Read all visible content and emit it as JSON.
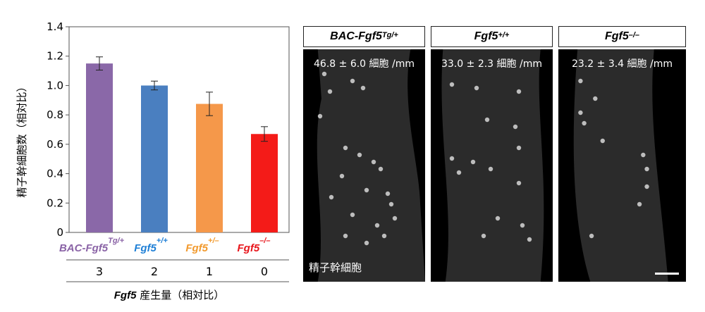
{
  "chart_data": {
    "type": "bar",
    "ylabel": "精子幹細胞数（相対比）",
    "ylim": [
      0,
      1.4
    ],
    "yticks": [
      "0",
      "0.2",
      "0.4",
      "0.6",
      "0.8",
      "1.0",
      "1.2",
      "1.4"
    ],
    "categories": [
      {
        "base": "BAC-Fgf5",
        "sup": "Tg/+",
        "color": "#8a63a6"
      },
      {
        "base": "Fgf5",
        "sup": "+/+",
        "color": "#1e7fd6"
      },
      {
        "base": "Fgf5",
        "sup": "+/–",
        "color": "#f29a2e"
      },
      {
        "base": "Fgf5",
        "sup": "–/–",
        "color": "#e8141a"
      }
    ],
    "values": [
      1.15,
      1.0,
      0.875,
      0.67
    ],
    "errors": [
      0.045,
      0.03,
      0.08,
      0.05
    ],
    "bar_colors": [
      "#8a68a8",
      "#4a7fc0",
      "#f5984a",
      "#f41b18"
    ],
    "production_levels": [
      "3",
      "2",
      "1",
      "0"
    ],
    "xlabel_gene": "Fgf5",
    "xlabel_rest": " 産生量（相対比）"
  },
  "panels": [
    {
      "title": "BAC-Fgf5",
      "sup": "Tg/+",
      "density": "46.8 ± 6.0 細胞 /mm"
    },
    {
      "title": "Fgf5",
      "sup": "+/+",
      "density": "33.0 ± 2.3 細胞 /mm"
    },
    {
      "title": "Fgf5",
      "sup": "–/–",
      "density": "23.2 ± 3.4 細胞 /mm"
    }
  ],
  "micrograph_label": "精子幹細胞"
}
